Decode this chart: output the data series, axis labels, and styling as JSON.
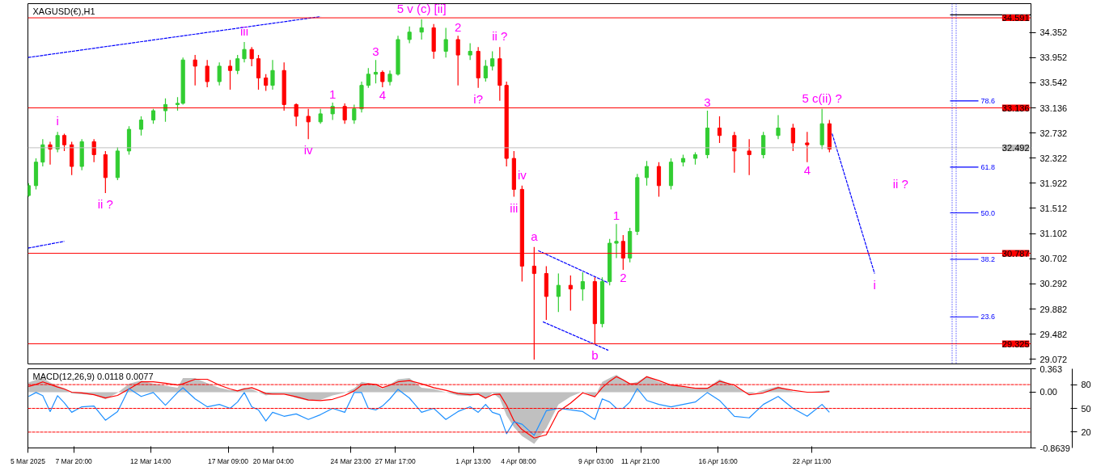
{
  "chart_data": [
    {
      "type": "candlestick",
      "title": "XAGUSD(€),H1",
      "tick_labels": "y",
      "xlim": [
        "2025-03-05",
        "2025-05-06"
      ],
      "ylim": [
        29.0,
        34.82
      ],
      "yticks": [
        34.352,
        33.952,
        33.542,
        33.136,
        32.732,
        32.322,
        31.922,
        31.512,
        31.102,
        30.702,
        30.292,
        29.882,
        29.482,
        29.072
      ],
      "x": [
        "2025-03-05T01:00",
        "2025-03-05T12:00",
        "2025-03-05T22:00",
        "2025-03-06T09:00",
        "2025-03-06T20:00",
        "2025-03-07T06:00",
        "2025-03-07T17:00",
        "2025-03-08T08:00",
        "2025-03-09T02:00",
        "2025-03-09T19:00",
        "2025-03-10T13:00",
        "2025-03-11T06:00",
        "2025-03-12T00:00",
        "2025-03-12T18:00",
        "2025-03-13T12:00",
        "2025-03-14T06:00",
        "2025-03-14T14:00",
        "2025-03-15T08:00",
        "2025-03-16T02:00",
        "2025-03-16T20:00",
        "2025-03-17T12:00",
        "2025-03-17T23:00",
        "2025-03-18T09:00",
        "2025-03-18T20:00",
        "2025-03-19T06:00",
        "2025-03-19T17:00",
        "2025-03-20T03:00",
        "2025-03-20T20:00",
        "2025-03-21T14:00",
        "2025-03-22T08:00",
        "2025-03-23T02:00",
        "2025-03-23T20:00",
        "2025-03-24T14:00",
        "2025-03-25T04:00",
        "2025-03-25T15:00",
        "2025-03-26T01:00",
        "2025-03-26T12:00",
        "2025-03-26T22:00",
        "2025-03-27T09:00",
        "2025-03-27T21:00",
        "2025-03-28T14:00",
        "2025-03-29T08:00",
        "2025-03-30T02:00",
        "2025-03-30T20:00",
        "2025-03-31T14:00",
        "2025-04-01T08:00",
        "2025-04-01T20:00",
        "2025-04-02T07:00",
        "2025-04-02T17:00",
        "2025-04-03T04:00",
        "2025-04-03T14:00",
        "2025-04-04T01:00",
        "2025-04-04T13:00",
        "2025-04-05T07:00",
        "2025-04-06T01:00",
        "2025-04-06T19:00",
        "2025-04-07T13:00",
        "2025-04-08T07:00",
        "2025-04-09T01:00",
        "2025-04-09T12:00",
        "2025-04-09T23:00",
        "2025-04-10T09:00",
        "2025-04-10T19:00",
        "2025-04-11T05:00",
        "2025-04-11T16:00",
        "2025-04-12T06:00",
        "2025-04-13T00:00",
        "2025-04-13T18:00",
        "2025-04-14T12:00",
        "2025-04-15T06:00",
        "2025-04-16T00:00",
        "2025-04-16T18:00",
        "2025-04-17T16:00",
        "2025-04-18T14:00",
        "2025-04-19T11:00",
        "2025-04-20T09:00",
        "2025-04-21T07:00",
        "2025-04-22T04:00",
        "2025-04-23T02:00",
        "2025-04-23T13:00"
      ],
      "ohlc": [
        [
          31.72,
          31.92,
          31.7,
          31.88
        ],
        [
          31.88,
          32.32,
          31.82,
          32.26
        ],
        [
          32.26,
          32.63,
          32.19,
          32.54
        ],
        [
          32.54,
          32.59,
          32.22,
          32.47
        ],
        [
          32.47,
          32.75,
          32.42,
          32.69
        ],
        [
          32.69,
          32.72,
          32.44,
          32.54
        ],
        [
          32.54,
          32.59,
          32.05,
          32.19
        ],
        [
          32.19,
          32.63,
          32.13,
          32.59
        ],
        [
          32.59,
          32.63,
          32.26,
          32.38
        ],
        [
          32.38,
          32.44,
          31.76,
          32.01
        ],
        [
          32.01,
          32.5,
          31.97,
          32.44
        ],
        [
          32.44,
          32.84,
          32.38,
          32.79
        ],
        [
          32.79,
          33.0,
          32.69,
          32.94
        ],
        [
          32.94,
          33.12,
          32.88,
          33.09
        ],
        [
          33.09,
          33.29,
          32.91,
          33.19
        ],
        [
          33.19,
          33.31,
          33.09,
          33.21
        ],
        [
          33.21,
          33.95,
          33.19,
          33.91
        ],
        [
          33.91,
          33.99,
          33.5,
          33.81
        ],
        [
          33.81,
          33.91,
          33.47,
          33.56
        ],
        [
          33.56,
          33.87,
          33.5,
          33.81
        ],
        [
          33.81,
          33.91,
          33.43,
          33.74
        ],
        [
          33.74,
          33.99,
          33.68,
          33.93
        ],
        [
          33.93,
          34.2,
          33.87,
          34.08
        ],
        [
          34.08,
          34.12,
          33.81,
          33.93
        ],
        [
          33.93,
          33.99,
          33.43,
          33.62
        ],
        [
          33.62,
          33.68,
          33.41,
          33.5
        ],
        [
          33.5,
          33.91,
          33.43,
          33.74
        ],
        [
          33.74,
          33.87,
          33.09,
          33.19
        ],
        [
          33.19,
          33.21,
          32.84,
          33.0
        ],
        [
          33.0,
          33.12,
          32.63,
          32.91
        ],
        [
          32.91,
          33.12,
          32.88,
          33.04
        ],
        [
          33.04,
          33.22,
          32.94,
          33.16
        ],
        [
          33.16,
          33.21,
          32.88,
          32.94
        ],
        [
          32.94,
          33.19,
          32.88,
          33.12
        ],
        [
          33.12,
          33.56,
          33.06,
          33.5
        ],
        [
          33.5,
          33.78,
          33.46,
          33.68
        ],
        [
          33.68,
          33.91,
          33.53,
          33.71
        ],
        [
          33.71,
          33.74,
          33.47,
          33.56
        ],
        [
          33.56,
          33.74,
          33.5,
          33.68
        ],
        [
          33.68,
          34.3,
          33.66,
          34.24
        ],
        [
          34.24,
          34.45,
          34.18,
          34.36
        ],
        [
          34.36,
          34.57,
          34.24,
          34.43
        ],
        [
          34.43,
          34.49,
          33.93,
          34.05
        ],
        [
          34.05,
          34.43,
          33.95,
          34.24
        ],
        [
          34.24,
          34.3,
          33.5,
          33.99
        ],
        [
          33.99,
          34.18,
          33.91,
          34.05
        ],
        [
          34.05,
          34.12,
          33.46,
          33.62
        ],
        [
          33.62,
          33.91,
          33.56,
          33.81
        ],
        [
          33.81,
          34.05,
          33.74,
          33.93
        ],
        [
          33.93,
          34.12,
          33.25,
          33.5
        ],
        [
          33.5,
          33.56,
          32.19,
          32.32
        ],
        [
          32.32,
          32.44,
          31.7,
          31.82
        ],
        [
          31.82,
          31.88,
          30.33,
          30.58
        ],
        [
          30.58,
          30.89,
          29.07,
          30.46
        ],
        [
          30.46,
          30.58,
          29.71,
          30.09
        ],
        [
          30.09,
          30.46,
          29.84,
          30.27
        ],
        [
          30.27,
          30.43,
          29.86,
          30.21
        ],
        [
          30.21,
          30.48,
          30.02,
          30.33
        ],
        [
          30.33,
          30.4,
          29.32,
          29.65
        ],
        [
          29.65,
          30.4,
          29.59,
          30.33
        ],
        [
          30.33,
          31.02,
          30.27,
          30.95
        ],
        [
          30.95,
          31.26,
          30.71,
          30.98
        ],
        [
          30.98,
          31.08,
          30.52,
          30.71
        ],
        [
          30.71,
          31.2,
          30.64,
          31.14
        ],
        [
          31.14,
          32.07,
          31.08,
          32.01
        ],
        [
          32.01,
          32.28,
          31.88,
          32.19
        ],
        [
          32.19,
          32.26,
          31.7,
          31.88
        ],
        [
          31.88,
          32.32,
          31.82,
          32.26
        ],
        [
          32.26,
          32.38,
          32.19,
          32.32
        ],
        [
          32.32,
          32.42,
          32.22,
          32.38
        ],
        [
          32.38,
          33.09,
          32.32,
          32.81
        ],
        [
          32.81,
          33.0,
          32.57,
          32.69
        ],
        [
          32.69,
          32.75,
          32.09,
          32.44
        ],
        [
          32.44,
          32.63,
          32.05,
          32.38
        ],
        [
          32.38,
          32.75,
          32.32,
          32.69
        ],
        [
          32.69,
          33.02,
          32.63,
          32.81
        ],
        [
          32.81,
          32.88,
          32.44,
          32.57
        ],
        [
          32.57,
          32.75,
          32.26,
          32.54
        ],
        [
          32.54,
          33.12,
          32.47,
          32.88
        ],
        [
          32.88,
          32.94,
          32.42,
          32.47
        ]
      ],
      "colors": [
        "#32cd32",
        "#32cd32",
        "#32cd32",
        "#ff0000",
        "#32cd32",
        "#ff0000",
        "#ff0000",
        "#32cd32",
        "#ff0000",
        "#ff0000",
        "#32cd32",
        "#32cd32",
        "#32cd32",
        "#32cd32",
        "#32cd32",
        "#32cd32",
        "#32cd32",
        "#ff0000",
        "#ff0000",
        "#32cd32",
        "#ff0000",
        "#32cd32",
        "#32cd32",
        "#ff0000",
        "#ff0000",
        "#ff0000",
        "#32cd32",
        "#ff0000",
        "#ff0000",
        "#ff0000",
        "#32cd32",
        "#32cd32",
        "#ff0000",
        "#32cd32",
        "#32cd32",
        "#32cd32",
        "#32cd32",
        "#ff0000",
        "#32cd32",
        "#32cd32",
        "#32cd32",
        "#32cd32",
        "#ff0000",
        "#32cd32",
        "#ff0000",
        "#32cd32",
        "#ff0000",
        "#32cd32",
        "#32cd32",
        "#ff0000",
        "#ff0000",
        "#ff0000",
        "#ff0000",
        "#ff0000",
        "#ff0000",
        "#32cd32",
        "#ff0000",
        "#32cd32",
        "#ff0000",
        "#32cd32",
        "#32cd32",
        "#32cd32",
        "#ff0000",
        "#32cd32",
        "#32cd32",
        "#32cd32",
        "#ff0000",
        "#32cd32",
        "#32cd32",
        "#32cd32",
        "#32cd32",
        "#ff0000",
        "#ff0000",
        "#ff0000",
        "#32cd32",
        "#32cd32",
        "#ff0000",
        "#ff0000",
        "#32cd32",
        "#ff0000"
      ],
      "series": [
        {
          "type": "line",
          "color": "#0000ff",
          "line_style": "dashed",
          "x": [
            "2025-03-05",
            "2025-03-23T02:00"
          ],
          "values": [
            33.95,
            34.61
          ]
        },
        {
          "type": "line",
          "color": "#0000ff",
          "line_style": "dashed",
          "x": [
            "2025-03-05",
            "2025-03-07T06:00"
          ],
          "values": [
            30.87,
            30.98
          ]
        },
        {
          "type": "line",
          "color": "#0000ff",
          "line_style": "dashed",
          "x": [
            "2025-04-05T13:00",
            "2025-04-09T21:00"
          ],
          "values": [
            30.83,
            30.31
          ]
        },
        {
          "type": "line",
          "color": "#0000ff",
          "line_style": "dashed",
          "x": [
            "2025-04-05T20:00",
            "2025-04-09T21:00"
          ],
          "values": [
            29.68,
            29.22
          ]
        },
        {
          "type": "line",
          "color": "#0000ff",
          "line_style": "dashed",
          "x": [
            "2025-04-23T17:00",
            "2025-04-26T08:00"
          ],
          "values": [
            32.72,
            30.46
          ]
        },
        {
          "type": "line",
          "color": "#000000",
          "line_style": "solid",
          "x": [
            "2025-05-01T00:00",
            "2025-05-06T00:00"
          ],
          "values": [
            34.64,
            34.64
          ]
        },
        {
          "type": "line",
          "color": "#0000ff",
          "line_style": "solid",
          "name": "78.6",
          "x": [
            "2025-05-01T00:00",
            "2025-05-02T18:00"
          ],
          "values": [
            33.25,
            33.25
          ]
        },
        {
          "type": "line",
          "color": "#0000ff",
          "line_style": "solid",
          "name": "61.8",
          "x": [
            "2025-05-01T00:00",
            "2025-05-02T18:00"
          ],
          "values": [
            32.18,
            32.18
          ]
        },
        {
          "type": "line",
          "color": "#0000ff",
          "line_style": "solid",
          "name": "50.0",
          "x": [
            "2025-05-01T00:00",
            "2025-05-02T18:00"
          ],
          "values": [
            31.44,
            31.44
          ]
        },
        {
          "type": "line",
          "color": "#0000ff",
          "line_style": "solid",
          "name": "38.2",
          "x": [
            "2025-05-01T00:00",
            "2025-05-02T18:00"
          ],
          "values": [
            30.69,
            30.69
          ]
        },
        {
          "type": "line",
          "color": "#0000ff",
          "line_style": "solid",
          "name": "23.6",
          "x": [
            "2025-05-01T00:00",
            "2025-05-02T18:00"
          ],
          "values": [
            29.76,
            29.76
          ]
        }
      ],
      "ref_lines": [
        {
          "axis": "y",
          "value": 34.591,
          "label": "34.591",
          "color": "#ff0000"
        },
        {
          "axis": "y",
          "value": 33.136,
          "label": "33.136",
          "color": "#ff0000"
        },
        {
          "axis": "y",
          "value": 32.492,
          "label": "32.492",
          "color": "#c0c0c0"
        },
        {
          "axis": "y",
          "value": 30.787,
          "label": "30.787",
          "color": "#ff0000"
        },
        {
          "axis": "y",
          "value": 29.325,
          "label": "29.325",
          "color": "#ff0000"
        },
        {
          "axis": "x",
          "value": "2025-05-01T03:00",
          "color": "#0000ff",
          "line_style": "dotted"
        },
        {
          "axis": "x",
          "value": "2025-05-01T09:00",
          "color": "#0000ff",
          "line_style": "dotted"
        }
      ],
      "annotations": [
        {
          "text": "i",
          "x": "2025-03-06T20:00",
          "y": 32.75
        },
        {
          "text": "ii ?",
          "x": "2025-03-09T19:00",
          "y": 31.76
        },
        {
          "text": "iii",
          "x": "2025-03-18T09:00",
          "y": 34.2
        },
        {
          "text": "iv",
          "x": "2025-03-22T08:00",
          "y": 32.63
        },
        {
          "text": "1",
          "x": "2025-03-23T20:00",
          "y": 33.22
        },
        {
          "text": "3",
          "x": "2025-03-26T12:00",
          "y": 33.91
        },
        {
          "text": "4",
          "x": "2025-03-26T22:00",
          "y": 33.47
        },
        {
          "text": "5 v (c) [ii]",
          "x": "2025-03-29T08:00",
          "y": 34.57
        },
        {
          "text": "2",
          "x": "2025-03-31T14:00",
          "y": 34.3
        },
        {
          "text": "ii ?",
          "x": "2025-04-03T04:00",
          "y": 34.12
        },
        {
          "text": "i?",
          "x": "2025-04-01T20:00",
          "y": 33.46
        },
        {
          "text": "iv",
          "x": "2025-04-04T13:00",
          "y": 31.88
        },
        {
          "text": "iii",
          "x": "2025-04-04T01:00",
          "y": 31.7
        },
        {
          "text": "a",
          "x": "2025-04-05T07:00",
          "y": 30.89
        },
        {
          "text": "b",
          "x": "2025-04-09T01:00",
          "y": 29.32
        },
        {
          "text": "1",
          "x": "2025-04-10T09:00",
          "y": 31.26
        },
        {
          "text": "2",
          "x": "2025-04-10T19:00",
          "y": 30.52
        },
        {
          "text": "3",
          "x": "2025-04-16T00:00",
          "y": 33.09
        },
        {
          "text": "4",
          "x": "2025-04-22T04:00",
          "y": 32.26
        },
        {
          "text": "5 c(ii) ?",
          "x": "2025-04-23T02:00",
          "y": 33.12
        },
        {
          "text": "i",
          "x": "2025-04-26T08:00",
          "y": 30.46
        },
        "ii ?"
      ]
    },
    {
      "type": "line",
      "title": "MACD(12,26,9) 0.0118 0.0077",
      "xlim": [
        "2025-03-05",
        "2025-05-06"
      ],
      "xticks": [
        {
          "value": "2025-03-05",
          "label": "5 Mar 2025"
        },
        {
          "value": "2025-03-07T20:00",
          "label": "7 Mar 20:00"
        },
        {
          "value": "2025-03-12T14:00",
          "label": "12 Mar 14:00"
        },
        {
          "value": "2025-03-17T09:00",
          "label": "17 Mar 09:00"
        },
        {
          "value": "2025-03-20T04:00",
          "label": "20 Mar 04:00"
        },
        {
          "value": "2025-03-24T23:00",
          "label": "24 Mar 23:00"
        },
        {
          "value": "2025-03-27T17:00",
          "label": "27 Mar 17:00"
        },
        {
          "value": "2025-04-01T13:00",
          "label": "1 Apr 13:00"
        },
        {
          "value": "2025-04-04T08:00",
          "label": "4 Apr 08:00"
        },
        {
          "value": "2025-04-09T03:00",
          "label": "9 Apr 03:00"
        },
        {
          "value": "2025-04-11T21:00",
          "label": "11 Apr 21:00"
        },
        {
          "value": "2025-04-16T16:00",
          "label": "16 Apr 16:00"
        },
        {
          "value": "2025-04-22T11:00",
          "label": "22 Apr 11:00"
        }
      ],
      "ylim": [
        -0.8639,
        0.363
      ],
      "yticks": [
        0.363,
        {
          "value": 0,
          "label": "0.00"
        },
        {
          "value": -0.8639,
          "label": "-0.8639"
        }
      ],
      "y2lim": [
        0,
        100
      ],
      "y2ticks": [
        80,
        50,
        20
      ],
      "x": [
        "2025-03-05T01:00",
        "2025-03-05T12:00",
        "2025-03-05T22:00",
        "2025-03-06T09:00",
        "2025-03-06T20:00",
        "2025-03-07T06:00",
        "2025-03-07T17:00",
        "2025-03-08T08:00",
        "2025-03-09T02:00",
        "2025-03-09T19:00",
        "2025-03-10T13:00",
        "2025-03-11T06:00",
        "2025-03-12T00:00",
        "2025-03-12T18:00",
        "2025-03-13T12:00",
        "2025-03-14T06:00",
        "2025-03-14T14:00",
        "2025-03-15T08:00",
        "2025-03-16T02:00",
        "2025-03-16T20:00",
        "2025-03-17T12:00",
        "2025-03-17T23:00",
        "2025-03-18T09:00",
        "2025-03-18T20:00",
        "2025-03-19T06:00",
        "2025-03-19T17:00",
        "2025-03-20T03:00",
        "2025-03-20T20:00",
        "2025-03-21T14:00",
        "2025-03-22T08:00",
        "2025-03-23T02:00",
        "2025-03-23T20:00",
        "2025-03-24T14:00",
        "2025-03-25T04:00",
        "2025-03-25T15:00",
        "2025-03-26T01:00",
        "2025-03-26T12:00",
        "2025-03-26T22:00",
        "2025-03-27T09:00",
        "2025-03-27T21:00",
        "2025-03-28T14:00",
        "2025-03-29T08:00",
        "2025-03-30T02:00",
        "2025-03-30T20:00",
        "2025-03-31T14:00",
        "2025-04-01T08:00",
        "2025-04-01T20:00",
        "2025-04-02T07:00",
        "2025-04-02T17:00",
        "2025-04-03T04:00",
        "2025-04-03T14:00",
        "2025-04-04T01:00",
        "2025-04-04T13:00",
        "2025-04-05T07:00",
        "2025-04-06T01:00",
        "2025-04-06T19:00",
        "2025-04-07T13:00",
        "2025-04-08T07:00",
        "2025-04-09T01:00",
        "2025-04-09T12:00",
        "2025-04-09T23:00",
        "2025-04-10T09:00",
        "2025-04-10T19:00",
        "2025-04-11T05:00",
        "2025-04-11T16:00",
        "2025-04-12T06:00",
        "2025-04-13T00:00",
        "2025-04-13T18:00",
        "2025-04-14T12:00",
        "2025-04-15T06:00",
        "2025-04-16T00:00",
        "2025-04-16T18:00",
        "2025-04-17T16:00",
        "2025-04-18T14:00",
        "2025-04-19T11:00",
        "2025-04-20T09:00",
        "2025-04-21T07:00",
        "2025-04-22T04:00",
        "2025-04-23T02:00",
        "2025-04-23T13:00"
      ],
      "series": [
        {
          "type": "area",
          "color": "#c0c0c0",
          "values": [
            0.15,
            0.19,
            0.22,
            0.15,
            0.1,
            0.06,
            -0.02,
            -0.03,
            -0.04,
            -0.11,
            -0.01,
            0.13,
            0.18,
            0.13,
            0.1,
            0.07,
            0.22,
            0.22,
            0.14,
            0.07,
            0.03,
            0.03,
            0.07,
            0.05,
            0.0,
            -0.05,
            -0.03,
            -0.02,
            -0.09,
            -0.13,
            -0.12,
            -0.05,
            -0.01,
            0.06,
            0.16,
            0.14,
            0.11,
            0.05,
            0.12,
            0.2,
            0.22,
            0.07,
            0.05,
            0.0,
            -0.05,
            -0.06,
            -0.03,
            -0.11,
            -0.01,
            -0.1,
            -0.36,
            -0.54,
            -0.68,
            -0.8,
            -0.56,
            -0.19,
            -0.07,
            0.01,
            -0.07,
            0.16,
            0.22,
            0.27,
            0.2,
            0.13,
            0.16,
            0.25,
            0.16,
            0.11,
            0.08,
            0.05,
            0.07,
            0.2,
            0.09,
            -0.03,
            0.03,
            0.09,
            0.01,
            0.0,
            0.02,
            0.03
          ]
        },
        {
          "type": "line",
          "color": "#ff0000",
          "values": [
            0.09,
            0.12,
            0.16,
            0.12,
            0.08,
            0.05,
            0.0,
            -0.01,
            -0.04,
            -0.09,
            -0.05,
            0.05,
            0.16,
            0.16,
            0.14,
            0.11,
            0.13,
            0.2,
            0.2,
            0.11,
            0.05,
            0.02,
            0.05,
            0.07,
            0.03,
            -0.02,
            -0.03,
            -0.03,
            -0.07,
            -0.12,
            -0.13,
            -0.11,
            -0.05,
            0.02,
            0.11,
            0.13,
            0.12,
            0.07,
            0.11,
            0.16,
            0.18,
            0.13,
            0.07,
            0.03,
            -0.02,
            -0.04,
            -0.03,
            -0.09,
            -0.04,
            -0.03,
            -0.2,
            -0.44,
            -0.58,
            -0.71,
            -0.66,
            -0.3,
            -0.17,
            -0.01,
            -0.07,
            0.07,
            0.17,
            0.24,
            0.19,
            0.13,
            0.13,
            0.24,
            0.18,
            0.11,
            0.09,
            0.06,
            0.06,
            0.17,
            0.11,
            -0.04,
            -0.01,
            0.07,
            0.03,
            0.0,
            0.0,
            0.01
          ]
        },
        {
          "type": "line",
          "color": "#1e90ff",
          "axis": "y2",
          "values": [
            65,
            70,
            66,
            46,
            66,
            57,
            45,
            52,
            53,
            35,
            46,
            75,
            65,
            70,
            54,
            70,
            76,
            62,
            52,
            55,
            50,
            58,
            70,
            52,
            48,
            34,
            45,
            40,
            43,
            36,
            42,
            50,
            45,
            70,
            70,
            50,
            48,
            53,
            62,
            74,
            63,
            45,
            50,
            36,
            46,
            52,
            45,
            55,
            45,
            42,
            18,
            33,
            30,
            16,
            47,
            50,
            48,
            46,
            36,
            62,
            58,
            50,
            50,
            58,
            75,
            60,
            55,
            52,
            55,
            58,
            70,
            60,
            40,
            38,
            55,
            65,
            50,
            40,
            55,
            45
          ]
        }
      ],
      "ref_lines": [
        {
          "axis": "y2",
          "value": 80,
          "color": "#ff0000",
          "line_style": "dashed"
        },
        {
          "axis": "y2",
          "value": 50,
          "color": "#ff0000",
          "line_style": "dashed"
        },
        {
          "axis": "y2",
          "value": 20,
          "color": "#ff0000",
          "line_style": "dashed"
        }
      ]
    }
  ]
}
